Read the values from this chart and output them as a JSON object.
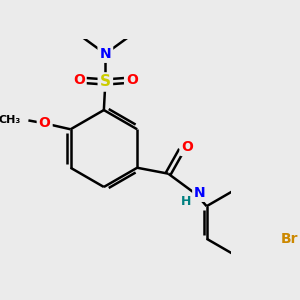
{
  "background_color": "#ebebeb",
  "bond_color": "#000000",
  "bond_width": 1.8,
  "atom_colors": {
    "N": "#0000ff",
    "O": "#ff0000",
    "S": "#cccc00",
    "Br": "#cc8800",
    "C": "#000000",
    "H": "#008080"
  },
  "figsize": [
    3.0,
    3.0
  ],
  "dpi": 100
}
